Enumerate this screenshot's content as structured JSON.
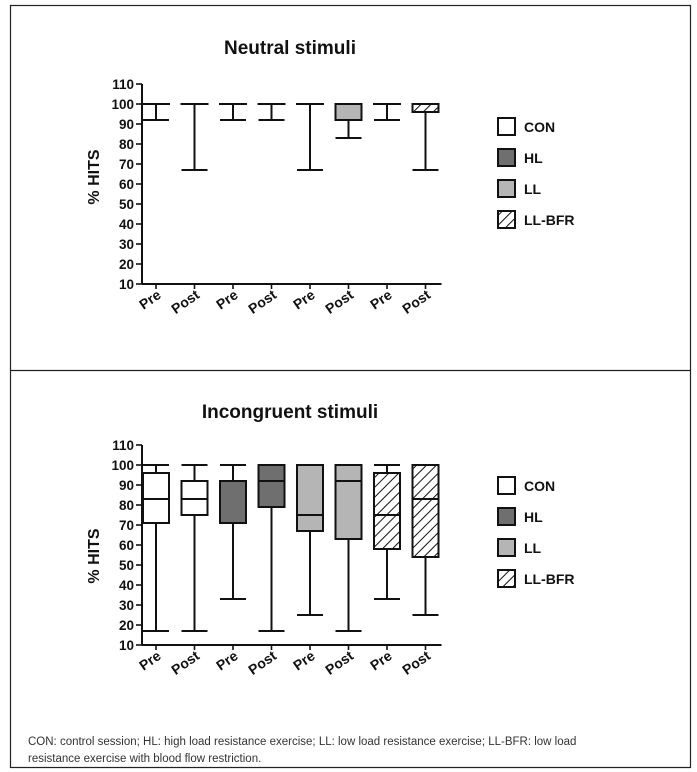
{
  "colors": {
    "CON": "#ffffff",
    "HL": "#6f6f6f",
    "LL": "#b5b5b5",
    "LL-BFR": "hatch"
  },
  "legend": [
    {
      "label": "CON",
      "style": "CON"
    },
    {
      "label": "HL",
      "style": "HL"
    },
    {
      "label": "LL",
      "style": "LL"
    },
    {
      "label": "LL-BFR",
      "style": "LL-BFR"
    }
  ],
  "chart_data": [
    {
      "type": "boxplot",
      "title": "Neutral stimuli",
      "ylabel": "% HITS",
      "ylim": [
        10,
        110
      ],
      "yticks": [
        10,
        20,
        30,
        40,
        50,
        60,
        70,
        80,
        90,
        100,
        110
      ],
      "categories": [
        "Pre",
        "Post",
        "Pre",
        "Post",
        "Pre",
        "Post",
        "Pre",
        "Post"
      ],
      "groups": [
        "CON",
        "CON",
        "HL",
        "HL",
        "LL",
        "LL",
        "LL-BFR",
        "LL-BFR"
      ],
      "boxes": [
        {
          "min": 92,
          "q1": 100,
          "median": 100,
          "q3": 100,
          "max": 100
        },
        {
          "min": 67,
          "q1": 100,
          "median": 100,
          "q3": 100,
          "max": 100
        },
        {
          "min": 92,
          "q1": 100,
          "median": 100,
          "q3": 100,
          "max": 100
        },
        {
          "min": 92,
          "q1": 100,
          "median": 100,
          "q3": 100,
          "max": 100
        },
        {
          "min": 67,
          "q1": 100,
          "median": 100,
          "q3": 100,
          "max": 100
        },
        {
          "min": 83,
          "q1": 92,
          "median": 100,
          "q3": 100,
          "max": 100
        },
        {
          "min": 92,
          "q1": 100,
          "median": 100,
          "q3": 100,
          "max": 100
        },
        {
          "min": 67,
          "q1": 96,
          "median": 100,
          "q3": 100,
          "max": 100
        }
      ]
    },
    {
      "type": "boxplot",
      "title": "Incongruent stimuli",
      "ylabel": "% HITS",
      "ylim": [
        10,
        110
      ],
      "yticks": [
        10,
        20,
        30,
        40,
        50,
        60,
        70,
        80,
        90,
        100,
        110
      ],
      "categories": [
        "Pre",
        "Post",
        "Pre",
        "Post",
        "Pre",
        "Post",
        "Pre",
        "Post"
      ],
      "groups": [
        "CON",
        "CON",
        "HL",
        "HL",
        "LL",
        "LL",
        "LL-BFR",
        "LL-BFR"
      ],
      "boxes": [
        {
          "min": 17,
          "q1": 71,
          "median": 83,
          "q3": 96,
          "max": 100
        },
        {
          "min": 17,
          "q1": 75,
          "median": 83,
          "q3": 92,
          "max": 100
        },
        {
          "min": 33,
          "q1": 71,
          "median": 92,
          "q3": 92,
          "max": 100
        },
        {
          "min": 17,
          "q1": 79,
          "median": 92,
          "q3": 100,
          "max": 100
        },
        {
          "min": 25,
          "q1": 67,
          "median": 75,
          "q3": 100,
          "max": 100
        },
        {
          "min": 17,
          "q1": 63,
          "median": 92,
          "q3": 100,
          "max": 100
        },
        {
          "min": 33,
          "q1": 58,
          "median": 75,
          "q3": 96,
          "max": 100
        },
        {
          "min": 25,
          "q1": 54,
          "median": 83,
          "q3": 100,
          "max": 100
        }
      ]
    }
  ],
  "caption": "CON: control session; HL: high load resistance exercise; LL: low load resistance exercise; LL-BFR: low load resistance exercise with blood flow restriction."
}
